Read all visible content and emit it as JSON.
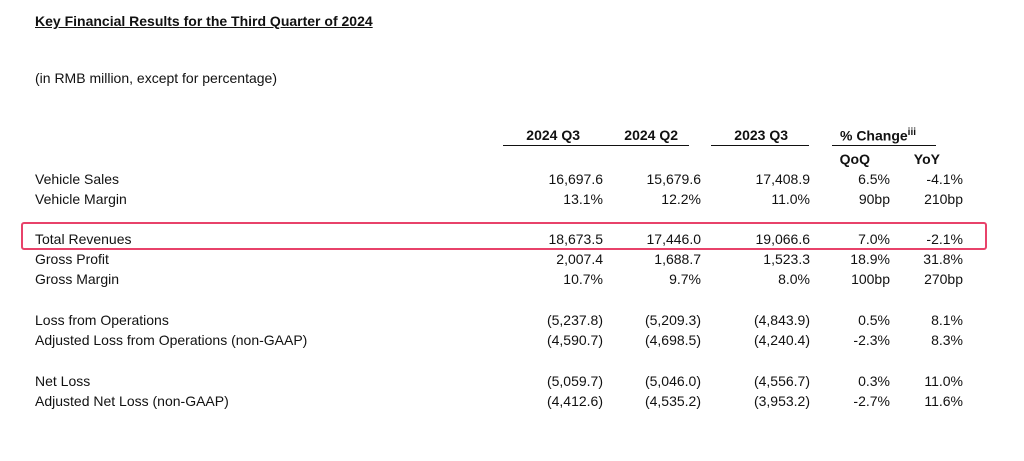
{
  "document": {
    "title_part1": "Key Financial Results",
    "title_part2": " for the Third Quarter of 2024",
    "unit_note": "(in RMB million, except for percentage)"
  },
  "table": {
    "columns": {
      "q3_2024": "2024 Q3",
      "q2_2024": "2024 Q2",
      "q3_2023": "2023 Q3",
      "pct_change": "% Change",
      "pct_change_footnote": "iii",
      "qoq": "QoQ",
      "yoy": "YoY"
    },
    "highlight_color": "#e8426a",
    "rows": [
      {
        "label": "Vehicle Sales",
        "q3_2024": "16,697.6",
        "q2_2024": "15,679.6",
        "q3_2023": "17,408.9",
        "qoq": "6.5%",
        "yoy": "-4.1%"
      },
      {
        "label": "Vehicle Margin",
        "q3_2024": "13.1%",
        "q2_2024": "12.2%",
        "q3_2023": "11.0%",
        "qoq": "90bp",
        "yoy": "210bp"
      },
      {
        "label": "Total Revenues",
        "q3_2024": "18,673.5",
        "q2_2024": "17,446.0",
        "q3_2023": "19,066.6",
        "qoq": "7.0%",
        "yoy": "-2.1%"
      },
      {
        "label": "Gross Profit",
        "q3_2024": "2,007.4",
        "q2_2024": "1,688.7",
        "q3_2023": "1,523.3",
        "qoq": "18.9%",
        "yoy": "31.8%"
      },
      {
        "label": "Gross Margin",
        "q3_2024": "10.7%",
        "q2_2024": "9.7%",
        "q3_2023": "8.0%",
        "qoq": "100bp",
        "yoy": "270bp"
      },
      {
        "label": "Loss from Operations",
        "q3_2024": "(5,237.8)",
        "q2_2024": "(5,209.3)",
        "q3_2023": "(4,843.9)",
        "qoq": "0.5%",
        "yoy": "8.1%"
      },
      {
        "label": "Adjusted Loss from Operations (non-GAAP)",
        "q3_2024": "(4,590.7)",
        "q2_2024": "(4,698.5)",
        "q3_2023": "(4,240.4)",
        "qoq": "-2.3%",
        "yoy": "8.3%"
      },
      {
        "label": "Net Loss",
        "q3_2024": "(5,059.7)",
        "q2_2024": "(5,046.0)",
        "q3_2023": "(4,556.7)",
        "qoq": "0.3%",
        "yoy": "11.0%"
      },
      {
        "label": "Adjusted Net Loss (non-GAAP)",
        "q3_2024": "(4,412.6)",
        "q2_2024": "(4,535.2)",
        "q3_2023": "(3,953.2)",
        "qoq": "-2.7%",
        "yoy": "11.6%"
      }
    ]
  }
}
